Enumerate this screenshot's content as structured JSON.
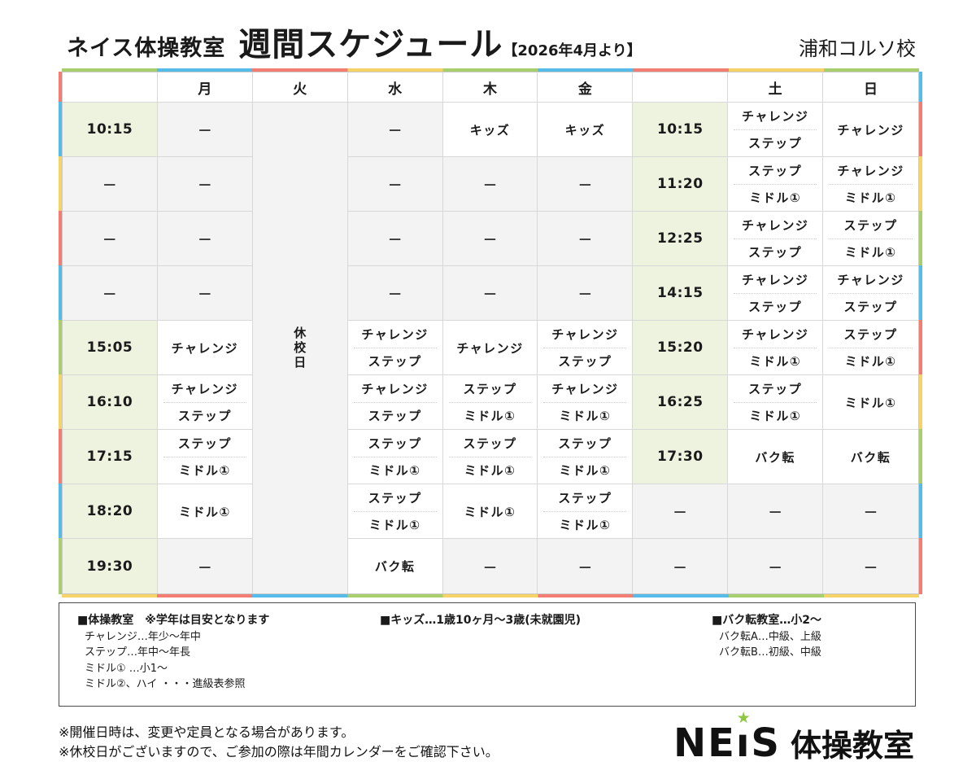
{
  "page": {
    "brand": "ネイス体操教室",
    "title": "週間スケジュール",
    "subtitle": "【2026年4月より】",
    "school": "浦和コルソ校"
  },
  "schedule": {
    "dash": "—",
    "closed_label": "休校日",
    "left_day_headers": [
      "月",
      "火",
      "水",
      "木",
      "金"
    ],
    "right_day_headers": [
      "土",
      "日"
    ],
    "rows": [
      {
        "time": "10:15",
        "mon": null,
        "wed": null,
        "thu": [
          "キッズ"
        ],
        "fri": [
          "キッズ"
        ],
        "time2": "10:15",
        "sat": [
          "チャレンジ",
          "ステップ"
        ],
        "sun": [
          "チャレンジ"
        ]
      },
      {
        "time": null,
        "mon": null,
        "wed": null,
        "thu": null,
        "fri": null,
        "time2": "11:20",
        "sat": [
          "ステップ",
          "ミドル①"
        ],
        "sun": [
          "チャレンジ",
          "ミドル①"
        ]
      },
      {
        "time": null,
        "mon": null,
        "wed": null,
        "thu": null,
        "fri": null,
        "time2": "12:25",
        "sat": [
          "チャレンジ",
          "ステップ"
        ],
        "sun": [
          "ステップ",
          "ミドル①"
        ]
      },
      {
        "time": null,
        "mon": null,
        "wed": null,
        "thu": null,
        "fri": null,
        "time2": "14:15",
        "sat": [
          "チャレンジ",
          "ステップ"
        ],
        "sun": [
          "チャレンジ",
          "ステップ"
        ]
      },
      {
        "time": "15:05",
        "mon": [
          "チャレンジ"
        ],
        "wed": [
          "チャレンジ",
          "ステップ"
        ],
        "thu": [
          "チャレンジ"
        ],
        "fri": [
          "チャレンジ",
          "ステップ"
        ],
        "time2": "15:20",
        "sat": [
          "チャレンジ",
          "ミドル①"
        ],
        "sun": [
          "ステップ",
          "ミドル①"
        ]
      },
      {
        "time": "16:10",
        "mon": [
          "チャレンジ",
          "ステップ"
        ],
        "wed": [
          "チャレンジ",
          "ステップ"
        ],
        "thu": [
          "ステップ",
          "ミドル①"
        ],
        "fri": [
          "チャレンジ",
          "ミドル①"
        ],
        "time2": "16:25",
        "sat": [
          "ステップ",
          "ミドル①"
        ],
        "sun": [
          "ミドル①"
        ]
      },
      {
        "time": "17:15",
        "mon": [
          "ステップ",
          "ミドル①"
        ],
        "wed": [
          "ステップ",
          "ミドル①"
        ],
        "thu": [
          "ステップ",
          "ミドル①"
        ],
        "fri": [
          "ステップ",
          "ミドル①"
        ],
        "time2": "17:30",
        "sat": [
          "バク転"
        ],
        "sun": [
          "バク転"
        ]
      },
      {
        "time": "18:20",
        "mon": [
          "ミドル①"
        ],
        "wed": [
          "ステップ",
          "ミドル①"
        ],
        "thu": [
          "ミドル①"
        ],
        "fri": [
          "ステップ",
          "ミドル①"
        ],
        "time2": null,
        "sat": null,
        "sun": null
      },
      {
        "time": "19:30",
        "mon": null,
        "wed": [
          "バク転"
        ],
        "thu": null,
        "fri": null,
        "time2": null,
        "sat": null,
        "sun": null
      }
    ]
  },
  "legend": {
    "col1": {
      "title": "■体操教室　※学年は目安となります",
      "lines": [
        "チャレンジ…年少～年中",
        "ステップ…年中～年長",
        "ミドル① …小1～",
        "ミドル②、ハイ ・・・進級表参照"
      ]
    },
    "col2": {
      "title": "■キッズ…1歳10ヶ月～3歳(未就園児)",
      "lines": []
    },
    "col3": {
      "title": "■バク転教室…小2～",
      "lines": [
        "バク転A…中級、上級",
        "バク転B…初級、中級"
      ]
    }
  },
  "notes": [
    "※開催日時は、変更や定員となる場合があります。",
    "※休校日がございますので、ご参加の際は年間カレンダーをご確認下さい。"
  ],
  "logo": {
    "latin_prefix": "NE",
    "latin_i": "ı",
    "latin_suffix": "S",
    "star": "★",
    "jp": "体操教室"
  },
  "colors": {
    "border_green": "#a9ce6e",
    "border_blue": "#55bce9",
    "border_red": "#f37d72",
    "border_yellow": "#f5d366",
    "time_cell_green": "#eef3e0",
    "empty_cell_gray": "#f3f3f3",
    "logo_star_green": "#8dc63f"
  }
}
